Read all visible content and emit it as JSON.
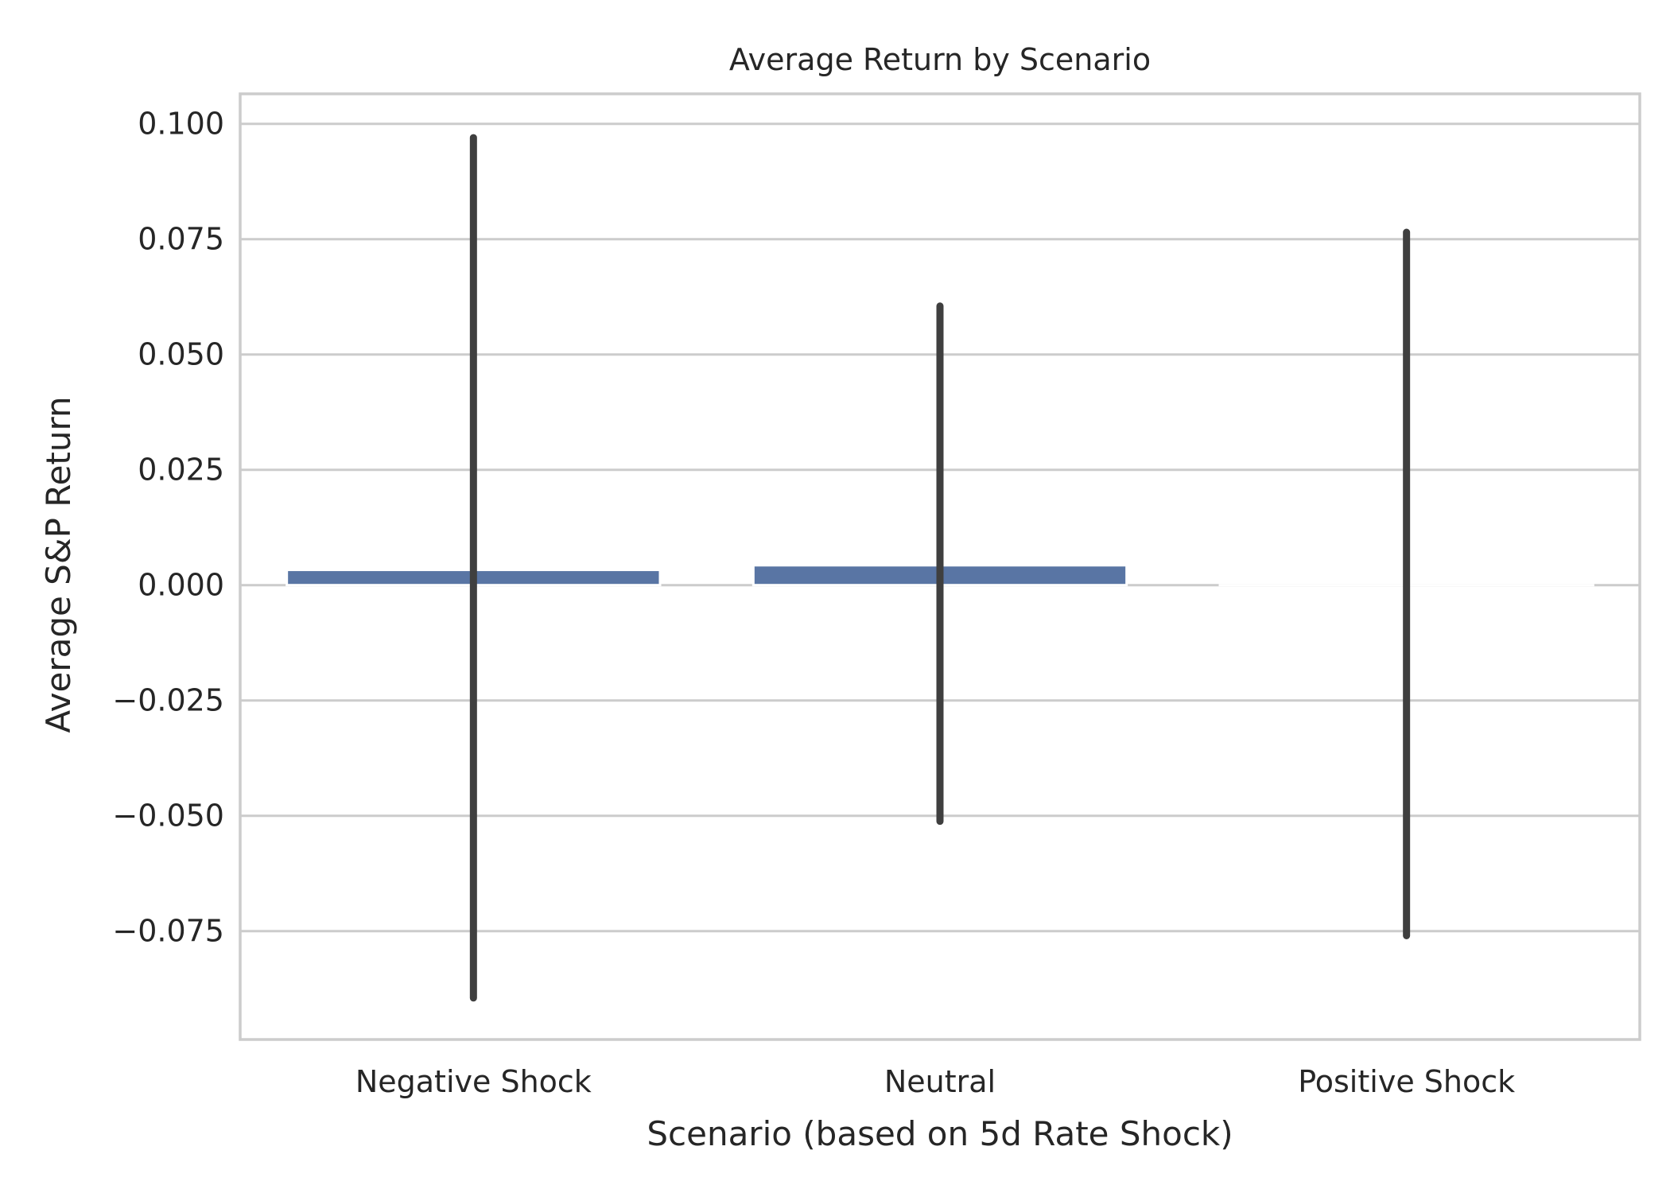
{
  "chart_data": {
    "type": "bar",
    "title": "Average Return by Scenario",
    "xlabel": "Scenario (based on 5d Rate Shock)",
    "ylabel": "Average S&P Return",
    "categories": [
      "Negative Shock",
      "Neutral",
      "Positive Shock"
    ],
    "values": [
      0.0033,
      0.0043,
      0.0
    ],
    "error_bars": [
      {
        "low": -0.0895,
        "high": 0.097
      },
      {
        "low": -0.0512,
        "high": 0.0605
      },
      {
        "low": -0.076,
        "high": 0.0765
      }
    ],
    "ylim": [
      -0.0985,
      0.1065
    ],
    "y_ticks": [
      -0.075,
      -0.05,
      -0.025,
      0.0,
      0.025,
      0.05,
      0.075,
      0.1
    ],
    "y_tick_labels": [
      "−0.075",
      "−0.050",
      "−0.025",
      "0.000",
      "0.025",
      "0.050",
      "0.075",
      "0.100"
    ],
    "grid": true,
    "legend": "none",
    "bar_color": "#5975a4",
    "error_bar_color": "#3f3f3f",
    "grid_color": "#cccccc"
  }
}
